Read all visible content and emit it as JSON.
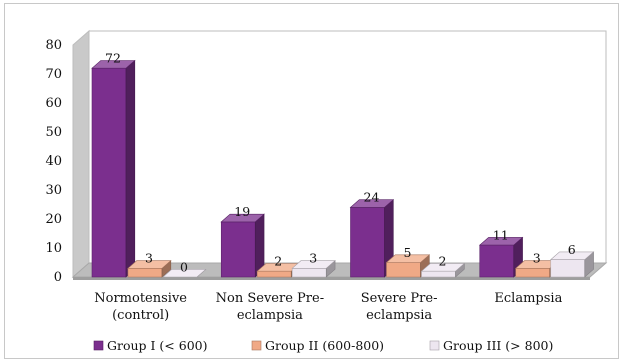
{
  "chart_data": {
    "type": "bar",
    "title": "",
    "xlabel": "",
    "ylabel": "",
    "ylim": [
      0,
      80
    ],
    "yticks": [
      "0",
      "10",
      "20",
      "30",
      "40",
      "50",
      "60",
      "70",
      "80"
    ],
    "categories": [
      [
        "Normotensive",
        "(control)"
      ],
      [
        "Non Severe Pre-",
        "eclampsia"
      ],
      [
        "Severe Pre-",
        "eclampsia"
      ],
      [
        "Eclampsia"
      ]
    ],
    "series": [
      {
        "name": "Group I (< 600)",
        "values": [
          72,
          19,
          24,
          11
        ],
        "color": "#7b2f8e"
      },
      {
        "name": "Group II (600-800)",
        "values": [
          3,
          2,
          5,
          3
        ],
        "color": "#f0a986"
      },
      {
        "name": "Group III (> 800)",
        "values": [
          0,
          3,
          2,
          6
        ],
        "color": "#ede6f0"
      }
    ],
    "legend": "bottom",
    "grid": false,
    "style": "3d-column"
  }
}
